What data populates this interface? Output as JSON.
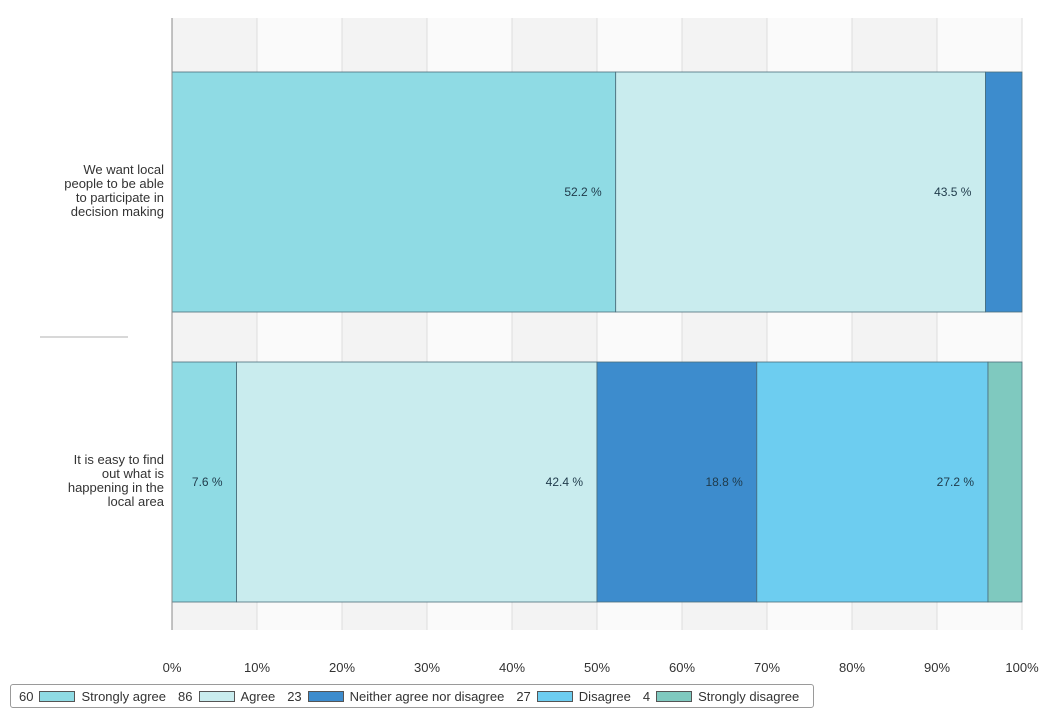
{
  "chart_data": {
    "type": "bar",
    "orientation": "horizontal",
    "stacked": "percent",
    "categories": [
      "We want local people to be able to participate in decision making",
      "It is easy to find out what is happening in the local area"
    ],
    "category_label_lines": [
      [
        "We want local",
        "people to be able",
        "to participate in",
        "decision making"
      ],
      [
        "It is easy to find",
        "out what is",
        "happening in the",
        "local area"
      ]
    ],
    "series": [
      {
        "name": "Strongly agree",
        "count": "60",
        "color": "#8fdbe4",
        "values": [
          52.2,
          7.6
        ],
        "labels": [
          "52.2 %",
          "7.6 %"
        ]
      },
      {
        "name": "Agree",
        "count": "86",
        "color": "#c9ecee",
        "values": [
          43.5,
          42.4
        ],
        "labels": [
          "43.5 %",
          "42.4 %"
        ]
      },
      {
        "name": "Neither agree nor disagree",
        "count": "23",
        "color": "#3d8ccd",
        "values": [
          4.3,
          18.8
        ],
        "labels": [
          "",
          "18.8 %"
        ]
      },
      {
        "name": "Disagree",
        "count": "27",
        "color": "#6dcdf0",
        "values": [
          0,
          27.2
        ],
        "labels": [
          "",
          "27.2 %"
        ]
      },
      {
        "name": "Strongly disagree",
        "count": "4",
        "color": "#7fc9bf",
        "values": [
          0,
          4.0
        ],
        "labels": [
          "",
          ""
        ]
      }
    ],
    "xlim": [
      0,
      100
    ],
    "x_ticks": [
      "0%",
      "10%",
      "20%",
      "30%",
      "40%",
      "50%",
      "60%",
      "70%",
      "80%",
      "90%",
      "100%"
    ],
    "grid": true,
    "legend_position": "bottom"
  }
}
